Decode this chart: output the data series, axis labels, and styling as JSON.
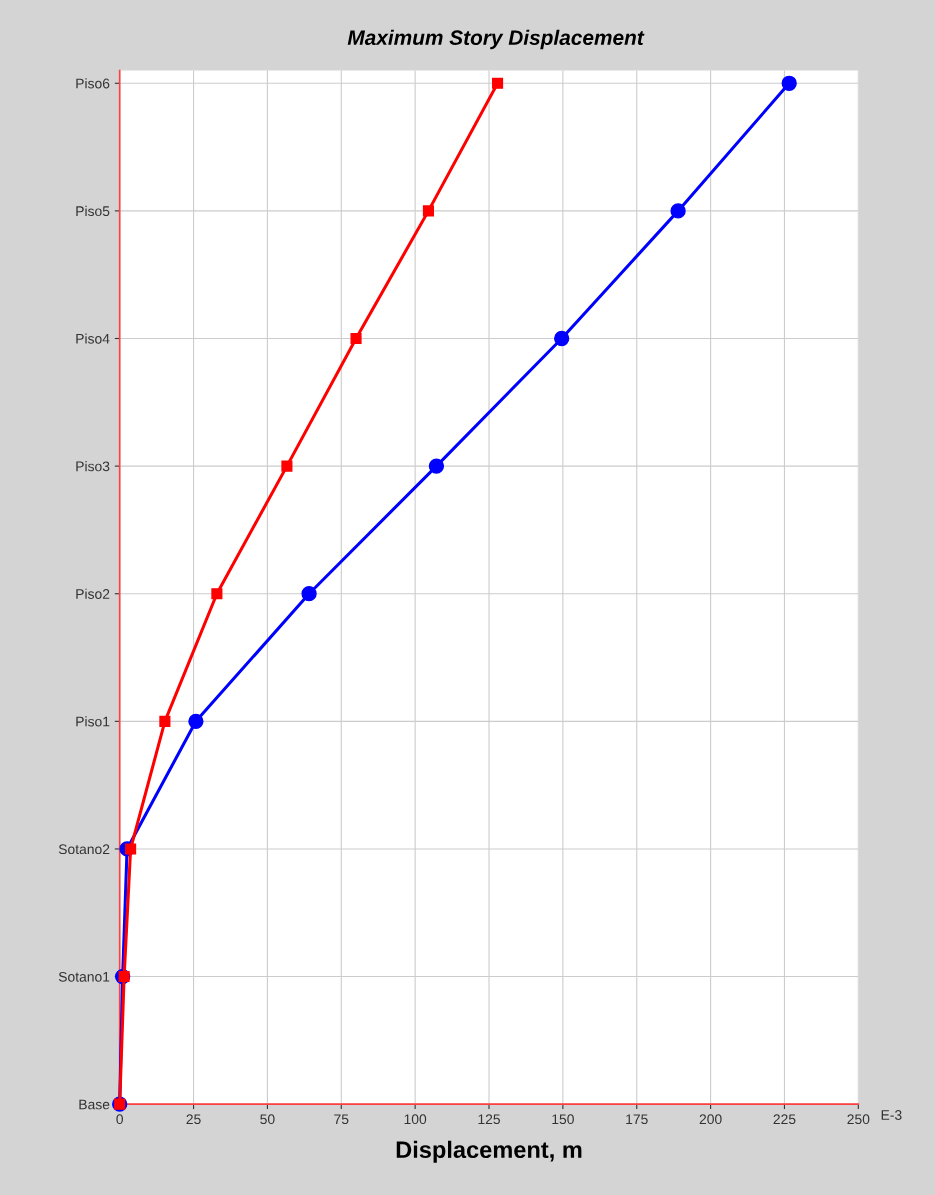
{
  "chart_data": {
    "type": "line",
    "title": "Maximum Story Displacement",
    "xlabel": "Displacement, m",
    "orientation": "horizontal",
    "categories": [
      "Piso6",
      "Piso5",
      "Piso4",
      "Piso3",
      "Piso2",
      "Piso1",
      "Sotano2",
      "Sotano1",
      "Base"
    ],
    "series": [
      {
        "color": "#ff0000",
        "marker": "square",
        "values": [
          127.9,
          104.5,
          80,
          56.6,
          32.9,
          15.3,
          3.7,
          1.5,
          0
        ]
      },
      {
        "color": "#0000ff",
        "marker": "circle",
        "values": [
          226.6,
          189,
          149.6,
          107.2,
          64.1,
          25.8,
          2.5,
          1,
          0
        ]
      }
    ],
    "xlim": [
      0,
      250
    ],
    "xticks": [
      0,
      25,
      50,
      75,
      100,
      125,
      150,
      175,
      200,
      225,
      250
    ],
    "annotations": [
      "E-3"
    ],
    "grid": true,
    "line_style": "solid"
  }
}
